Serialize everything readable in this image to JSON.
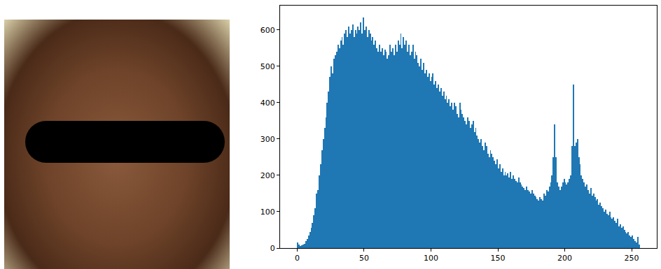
{
  "chart_data": {
    "type": "histogram",
    "bins": [
      0,
      1,
      2,
      3,
      4,
      5,
      6,
      7,
      8,
      9,
      10,
      11,
      12,
      13,
      14,
      15,
      16,
      17,
      18,
      19,
      20,
      21,
      22,
      23,
      24,
      25,
      26,
      27,
      28,
      29,
      30,
      31,
      32,
      33,
      34,
      35,
      36,
      37,
      38,
      39,
      40,
      41,
      42,
      43,
      44,
      45,
      46,
      47,
      48,
      49,
      50,
      51,
      52,
      53,
      54,
      55,
      56,
      57,
      58,
      59,
      60,
      61,
      62,
      63,
      64,
      65,
      66,
      67,
      68,
      69,
      70,
      71,
      72,
      73,
      74,
      75,
      76,
      77,
      78,
      79,
      80,
      81,
      82,
      83,
      84,
      85,
      86,
      87,
      88,
      89,
      90,
      91,
      92,
      93,
      94,
      95,
      96,
      97,
      98,
      99,
      100,
      101,
      102,
      103,
      104,
      105,
      106,
      107,
      108,
      109,
      110,
      111,
      112,
      113,
      114,
      115,
      116,
      117,
      118,
      119,
      120,
      121,
      122,
      123,
      124,
      125,
      126,
      127,
      128,
      129,
      130,
      131,
      132,
      133,
      134,
      135,
      136,
      137,
      138,
      139,
      140,
      141,
      142,
      143,
      144,
      145,
      146,
      147,
      148,
      149,
      150,
      151,
      152,
      153,
      154,
      155,
      156,
      157,
      158,
      159,
      160,
      161,
      162,
      163,
      164,
      165,
      166,
      167,
      168,
      169,
      170,
      171,
      172,
      173,
      174,
      175,
      176,
      177,
      178,
      179,
      180,
      181,
      182,
      183,
      184,
      185,
      186,
      187,
      188,
      189,
      190,
      191,
      192,
      193,
      194,
      195,
      196,
      197,
      198,
      199,
      200,
      201,
      202,
      203,
      204,
      205,
      206,
      207,
      208,
      209,
      210,
      211,
      212,
      213,
      214,
      215,
      216,
      217,
      218,
      219,
      220,
      221,
      222,
      223,
      224,
      225,
      226,
      227,
      228,
      229,
      230,
      231,
      232,
      233,
      234,
      235,
      236,
      237,
      238,
      239,
      240,
      241,
      242,
      243,
      244,
      245,
      246,
      247,
      248,
      249,
      250,
      251,
      252,
      253,
      254,
      255,
      256
    ],
    "values": [
      15,
      10,
      5,
      8,
      10,
      12,
      20,
      25,
      35,
      45,
      55,
      70,
      90,
      110,
      150,
      160,
      200,
      230,
      270,
      300,
      330,
      360,
      400,
      430,
      470,
      500,
      480,
      520,
      530,
      540,
      560,
      550,
      570,
      580,
      560,
      590,
      600,
      580,
      610,
      590,
      600,
      615,
      580,
      600,
      590,
      610,
      600,
      620,
      590,
      635,
      600,
      610,
      580,
      600,
      590,
      570,
      580,
      560,
      570,
      550,
      540,
      560,
      540,
      550,
      530,
      545,
      540,
      520,
      530,
      560,
      540,
      550,
      530,
      560,
      540,
      570,
      560,
      590,
      550,
      580,
      560,
      570,
      540,
      560,
      530,
      540,
      560,
      520,
      540,
      530,
      510,
      500,
      520,
      490,
      510,
      480,
      490,
      470,
      480,
      460,
      470,
      480,
      450,
      460,
      440,
      450,
      430,
      440,
      420,
      430,
      410,
      420,
      400,
      410,
      390,
      400,
      380,
      400,
      390,
      370,
      360,
      400,
      380,
      370,
      360,
      350,
      340,
      360,
      350,
      330,
      340,
      350,
      320,
      330,
      310,
      300,
      290,
      300,
      280,
      270,
      290,
      280,
      260,
      250,
      270,
      260,
      250,
      240,
      230,
      245,
      220,
      230,
      210,
      220,
      200,
      210,
      200,
      205,
      195,
      210,
      190,
      200,
      190,
      185,
      180,
      195,
      180,
      175,
      170,
      165,
      160,
      170,
      160,
      155,
      150,
      160,
      150,
      145,
      140,
      135,
      130,
      140,
      135,
      130,
      150,
      145,
      160,
      155,
      170,
      180,
      200,
      250,
      340,
      250,
      180,
      170,
      160,
      170,
      180,
      190,
      180,
      175,
      180,
      190,
      200,
      280,
      450,
      280,
      290,
      300,
      250,
      230,
      200,
      190,
      180,
      170,
      175,
      160,
      150,
      165,
      145,
      150,
      140,
      130,
      135,
      120,
      125,
      115,
      110,
      100,
      105,
      95,
      90,
      100,
      85,
      80,
      85,
      75,
      70,
      80,
      60,
      65,
      55,
      60,
      50,
      45,
      40,
      45,
      35,
      30,
      35,
      25,
      20,
      15,
      30,
      10
    ],
    "color": "#1f77b4",
    "xlim": [
      -12.8,
      268.8
    ],
    "xticks": [
      0,
      50,
      100,
      150,
      200,
      250
    ],
    "ylim": [
      0,
      667
    ],
    "yticks": [
      0,
      100,
      200,
      300,
      400,
      500,
      600
    ],
    "grid": false
  }
}
